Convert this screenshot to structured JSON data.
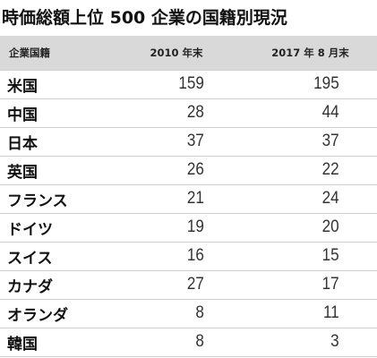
{
  "title": "時価総額上位 500 企業の国籍別現況",
  "table": {
    "headers": [
      "企業国籍",
      "2010 年末",
      "2017 年 8 月末"
    ],
    "rows": [
      {
        "country": "米国",
        "v2010": "159",
        "v2017": "195"
      },
      {
        "country": "中国",
        "v2010": "28",
        "v2017": "44"
      },
      {
        "country": "日本",
        "v2010": "37",
        "v2017": "37"
      },
      {
        "country": "英国",
        "v2010": "26",
        "v2017": "22"
      },
      {
        "country": "フランス",
        "v2010": "21",
        "v2017": "24"
      },
      {
        "country": "ドイツ",
        "v2010": "19",
        "v2017": "20"
      },
      {
        "country": "スイス",
        "v2010": "16",
        "v2017": "15"
      },
      {
        "country": "カナダ",
        "v2010": "27",
        "v2017": "17"
      },
      {
        "country": "オランダ",
        "v2010": "8",
        "v2017": "11"
      },
      {
        "country": "韓国",
        "v2010": "8",
        "v2017": "3"
      }
    ]
  }
}
